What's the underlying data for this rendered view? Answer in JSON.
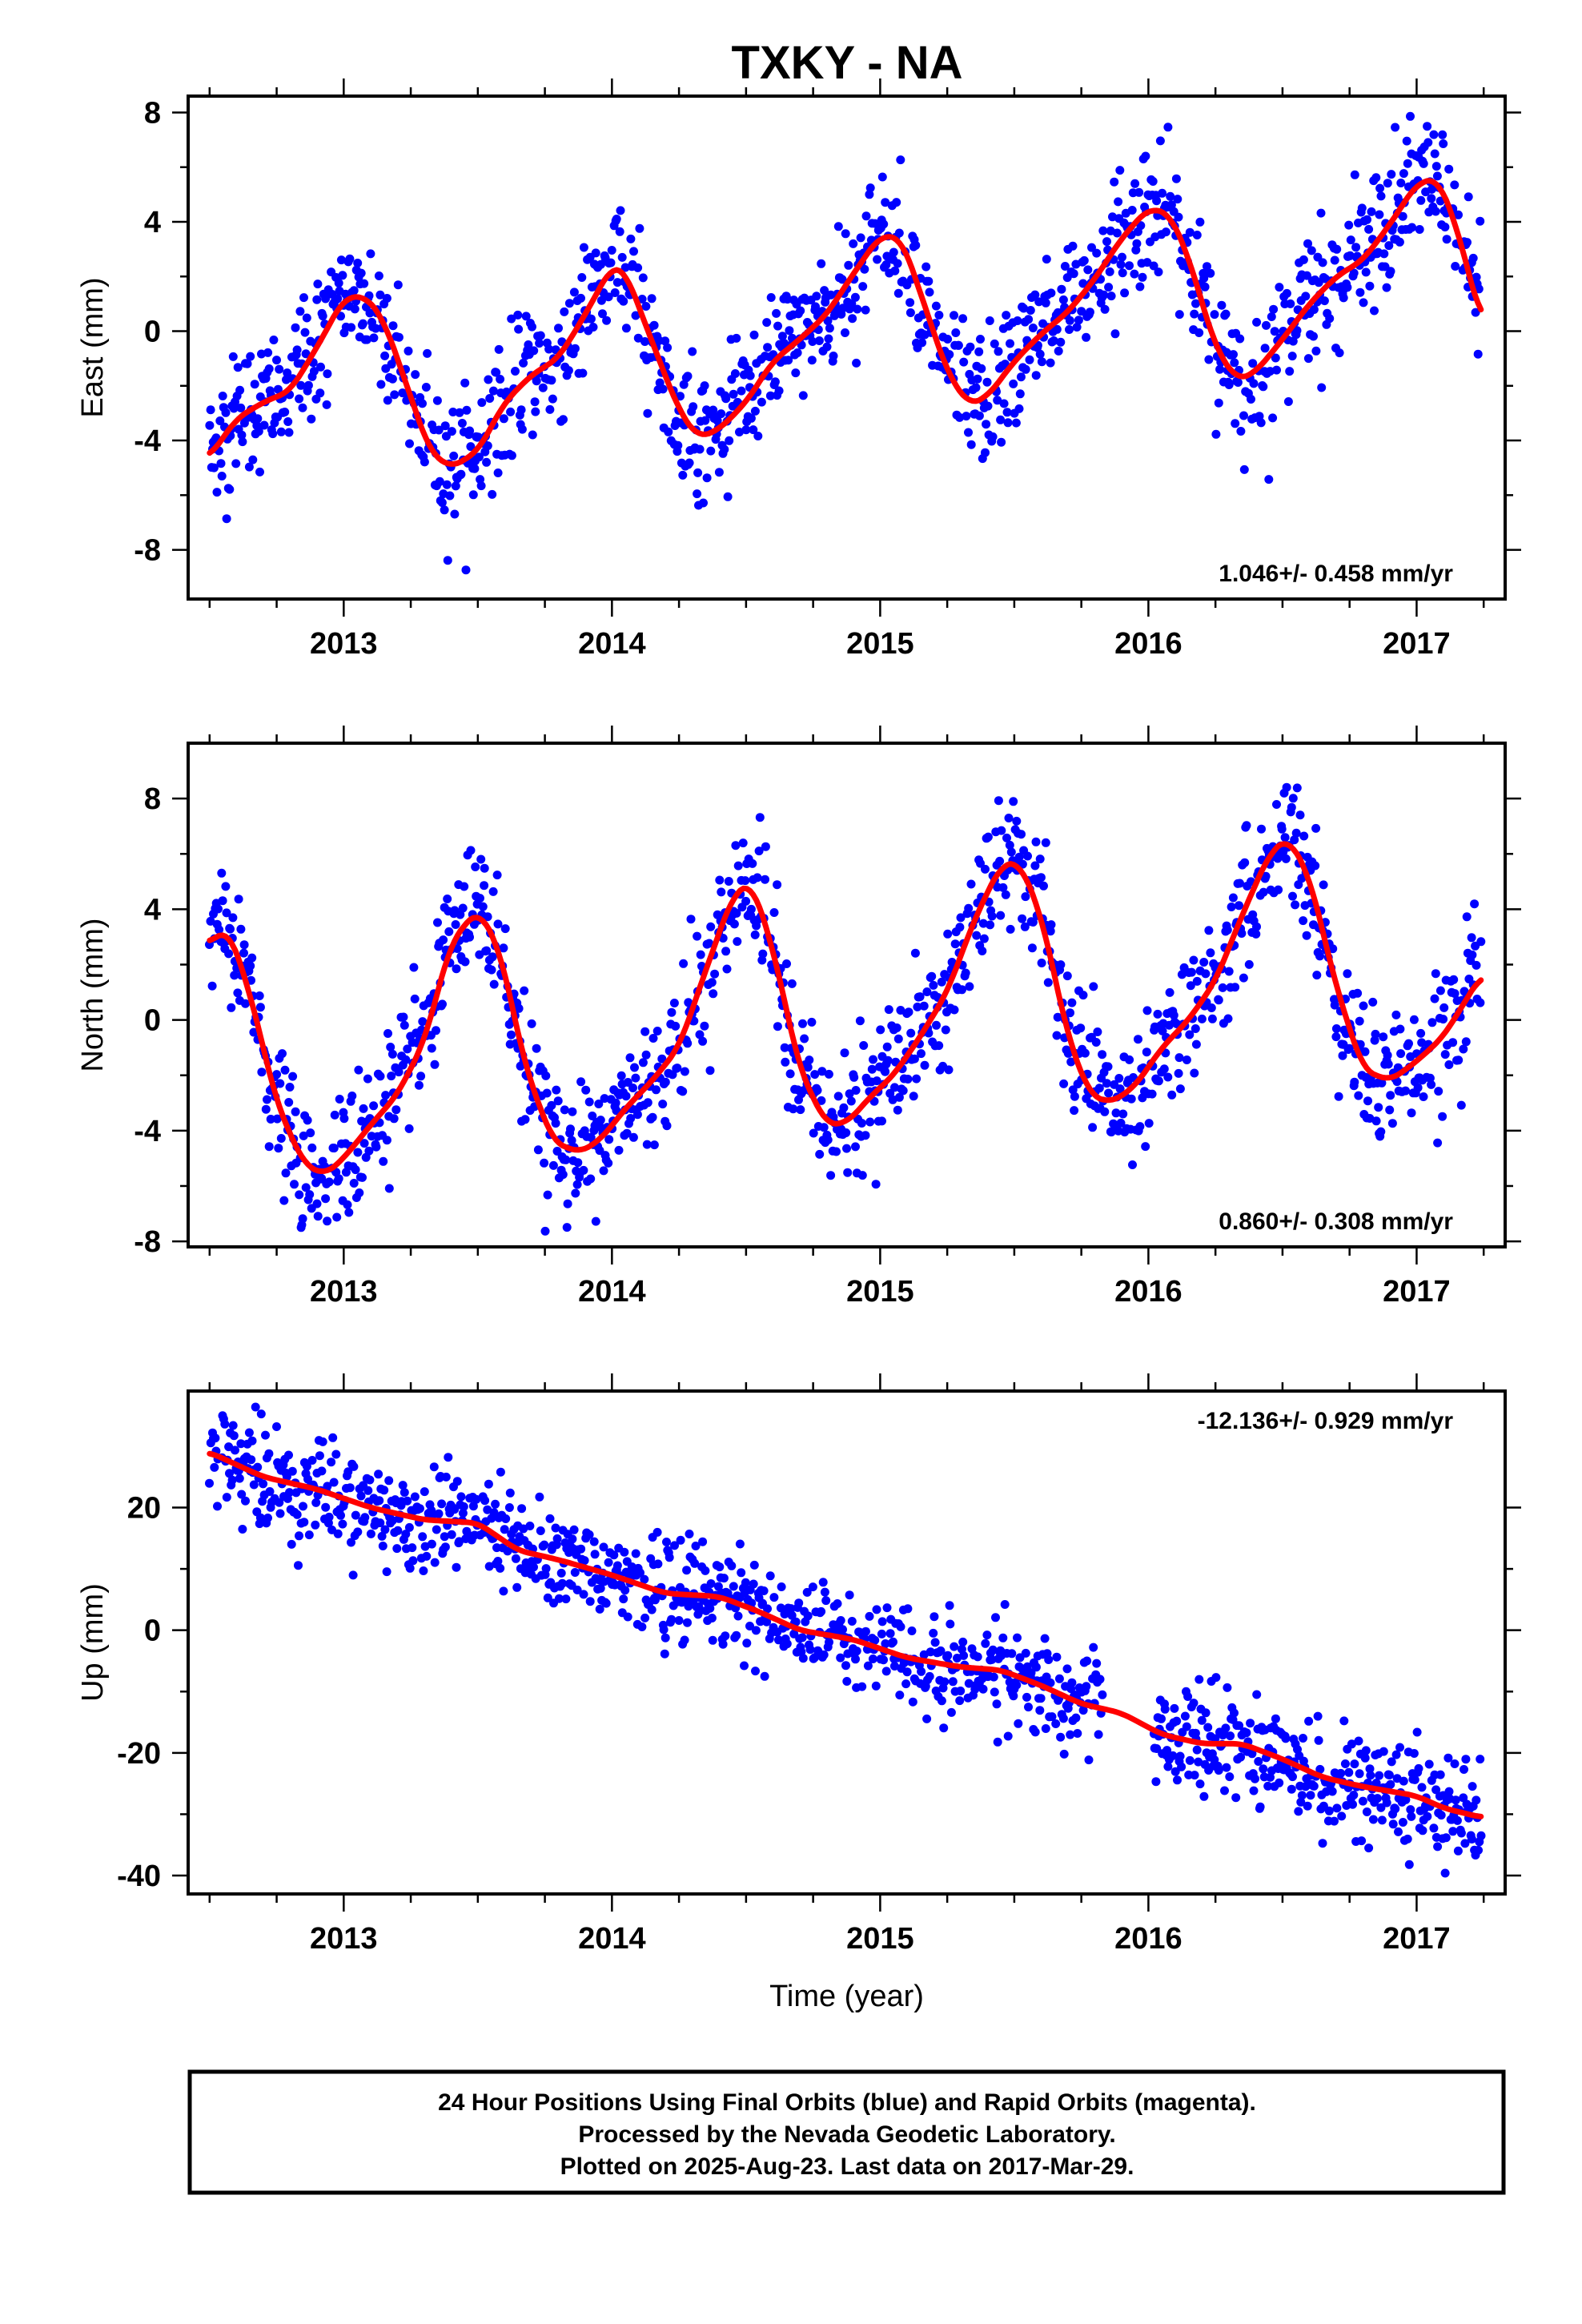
{
  "title": "TXKY - NA",
  "caption": [
    "24 Hour Positions Using Final Orbits (blue) and Rapid Orbits (magenta).",
    "Processed by the Nevada Geodetic Laboratory.",
    "Plotted on 2025-Aug-23. Last data on 2017-Mar-29."
  ],
  "colors": {
    "observations": "#0000ff",
    "model_fit": "#ff0000",
    "rapid_orbits": "#ff00ff"
  },
  "chart_data": [
    {
      "type": "scatter",
      "ylabel": "East (mm)",
      "xlabel": "",
      "xlim": [
        2012.42,
        2017.33
      ],
      "ylim": [
        -9.8,
        8.6
      ],
      "xticks": [
        2013,
        2014,
        2015,
        2016,
        2017
      ],
      "yticks": [
        -8,
        -4,
        0,
        4,
        8
      ],
      "rate_text": "1.046+/- 0.458 mm/yr",
      "rate_position": "bottom-right",
      "grid": false,
      "x_range": [
        2012.5,
        2017.24
      ],
      "fit_x": [
        2012.5,
        2012.6,
        2012.7,
        2012.8,
        2012.9,
        2013.0,
        2013.08,
        2013.15,
        2013.25,
        2013.32,
        2013.4,
        2013.5,
        2013.6,
        2013.7,
        2013.8,
        2013.9,
        2014.0,
        2014.05,
        2014.15,
        2014.25,
        2014.32,
        2014.4,
        2014.5,
        2014.6,
        2014.7,
        2014.8,
        2014.9,
        2015.0,
        2015.08,
        2015.15,
        2015.25,
        2015.33,
        2015.4,
        2015.5,
        2015.6,
        2015.7,
        2015.8,
        2015.9,
        2016.0,
        2016.08,
        2016.15,
        2016.25,
        2016.33,
        2016.4,
        2016.5,
        2016.6,
        2016.7,
        2016.8,
        2016.9,
        2017.0,
        2017.08,
        2017.15,
        2017.24
      ],
      "fit_y": [
        -4.6,
        -3.2,
        -2.6,
        -2.2,
        -0.6,
        1.2,
        1.3,
        0.4,
        -2.4,
        -4.4,
        -5.0,
        -4.4,
        -2.6,
        -1.6,
        -1.0,
        0.6,
        2.4,
        2.2,
        -0.4,
        -2.9,
        -3.9,
        -3.6,
        -2.6,
        -1.1,
        -0.3,
        0.6,
        2.1,
        3.5,
        3.4,
        1.4,
        -1.5,
        -2.7,
        -2.4,
        -1.1,
        -0.1,
        0.7,
        1.9,
        3.4,
        4.5,
        4.3,
        2.7,
        -0.6,
        -1.8,
        -1.5,
        -0.3,
        1.0,
        2.0,
        2.6,
        3.9,
        5.4,
        5.6,
        3.8,
        0.4
      ],
      "scatter_sd": 1.2
    },
    {
      "type": "scatter",
      "ylabel": "North (mm)",
      "xlabel": "",
      "xlim": [
        2012.42,
        2017.33
      ],
      "ylim": [
        -8.2,
        10.0
      ],
      "xticks": [
        2013,
        2014,
        2015,
        2016,
        2017
      ],
      "yticks": [
        -8,
        -4,
        0,
        4,
        8
      ],
      "rate_text": "0.860+/- 0.308 mm/yr",
      "rate_position": "bottom-right",
      "grid": false,
      "x_range": [
        2012.5,
        2017.24
      ],
      "fit_x": [
        2012.5,
        2012.57,
        2012.65,
        2012.75,
        2012.85,
        2012.93,
        2013.0,
        2013.1,
        2013.2,
        2013.3,
        2013.4,
        2013.5,
        2013.58,
        2013.68,
        2013.78,
        2013.88,
        2013.96,
        2014.05,
        2014.15,
        2014.25,
        2014.35,
        2014.45,
        2014.52,
        2014.6,
        2014.7,
        2014.8,
        2014.88,
        2014.96,
        2015.05,
        2015.15,
        2015.25,
        2015.35,
        2015.45,
        2015.52,
        2015.6,
        2015.7,
        2015.78,
        2015.86,
        2015.95,
        2016.05,
        2016.15,
        2016.25,
        2016.35,
        2016.45,
        2016.52,
        2016.6,
        2016.7,
        2016.8,
        2016.9,
        2017.0,
        2017.1,
        2017.24
      ],
      "fit_y": [
        2.8,
        3.3,
        1.0,
        -3.0,
        -5.2,
        -5.6,
        -5.0,
        -3.8,
        -2.7,
        -0.8,
        2.8,
        4.0,
        2.6,
        -1.8,
        -4.4,
        -4.8,
        -4.3,
        -3.2,
        -2.2,
        -1.0,
        1.8,
        4.5,
        5.0,
        2.6,
        -1.8,
        -3.8,
        -3.7,
        -2.8,
        -2.0,
        -0.6,
        1.0,
        3.6,
        5.6,
        5.7,
        3.8,
        -0.6,
        -2.7,
        -3.0,
        -2.4,
        -1.0,
        0.0,
        1.4,
        3.8,
        6.0,
        6.6,
        5.2,
        1.2,
        -1.8,
        -2.2,
        -1.5,
        -0.6,
        1.6
      ],
      "scatter_sd": 1.2
    },
    {
      "type": "scatter",
      "ylabel": "Up (mm)",
      "xlabel": "Time (year)",
      "xlim": [
        2012.42,
        2017.33
      ],
      "ylim": [
        -43,
        39
      ],
      "xticks": [
        2013,
        2014,
        2015,
        2016,
        2017
      ],
      "yticks": [
        -40,
        -20,
        0,
        20
      ],
      "rate_text": "-12.136+/- 0.929 mm/yr",
      "rate_position": "top-right",
      "grid": false,
      "x_range": [
        2012.5,
        2017.24
      ],
      "gaps": [
        [
          2015.83,
          2016.02
        ]
      ],
      "fit_x": [
        2012.5,
        2012.7,
        2012.9,
        2013.1,
        2013.3,
        2013.5,
        2013.65,
        2013.8,
        2014.0,
        2014.2,
        2014.4,
        2014.55,
        2014.7,
        2014.9,
        2015.1,
        2015.3,
        2015.45,
        2015.6,
        2015.75,
        2015.9,
        2016.05,
        2016.2,
        2016.35,
        2016.5,
        2016.65,
        2016.8,
        2017.0,
        2017.1,
        2017.24
      ],
      "fit_y": [
        29,
        25,
        23,
        20,
        18,
        17.5,
        13,
        11.5,
        9,
        6,
        5.5,
        3,
        0,
        -1.5,
        -4.5,
        -6,
        -6.5,
        -9,
        -12,
        -13.5,
        -17,
        -18.5,
        -18.5,
        -21,
        -24,
        -25.5,
        -27,
        -29,
        -30.5
      ],
      "scatter_sd": 4.2
    }
  ]
}
